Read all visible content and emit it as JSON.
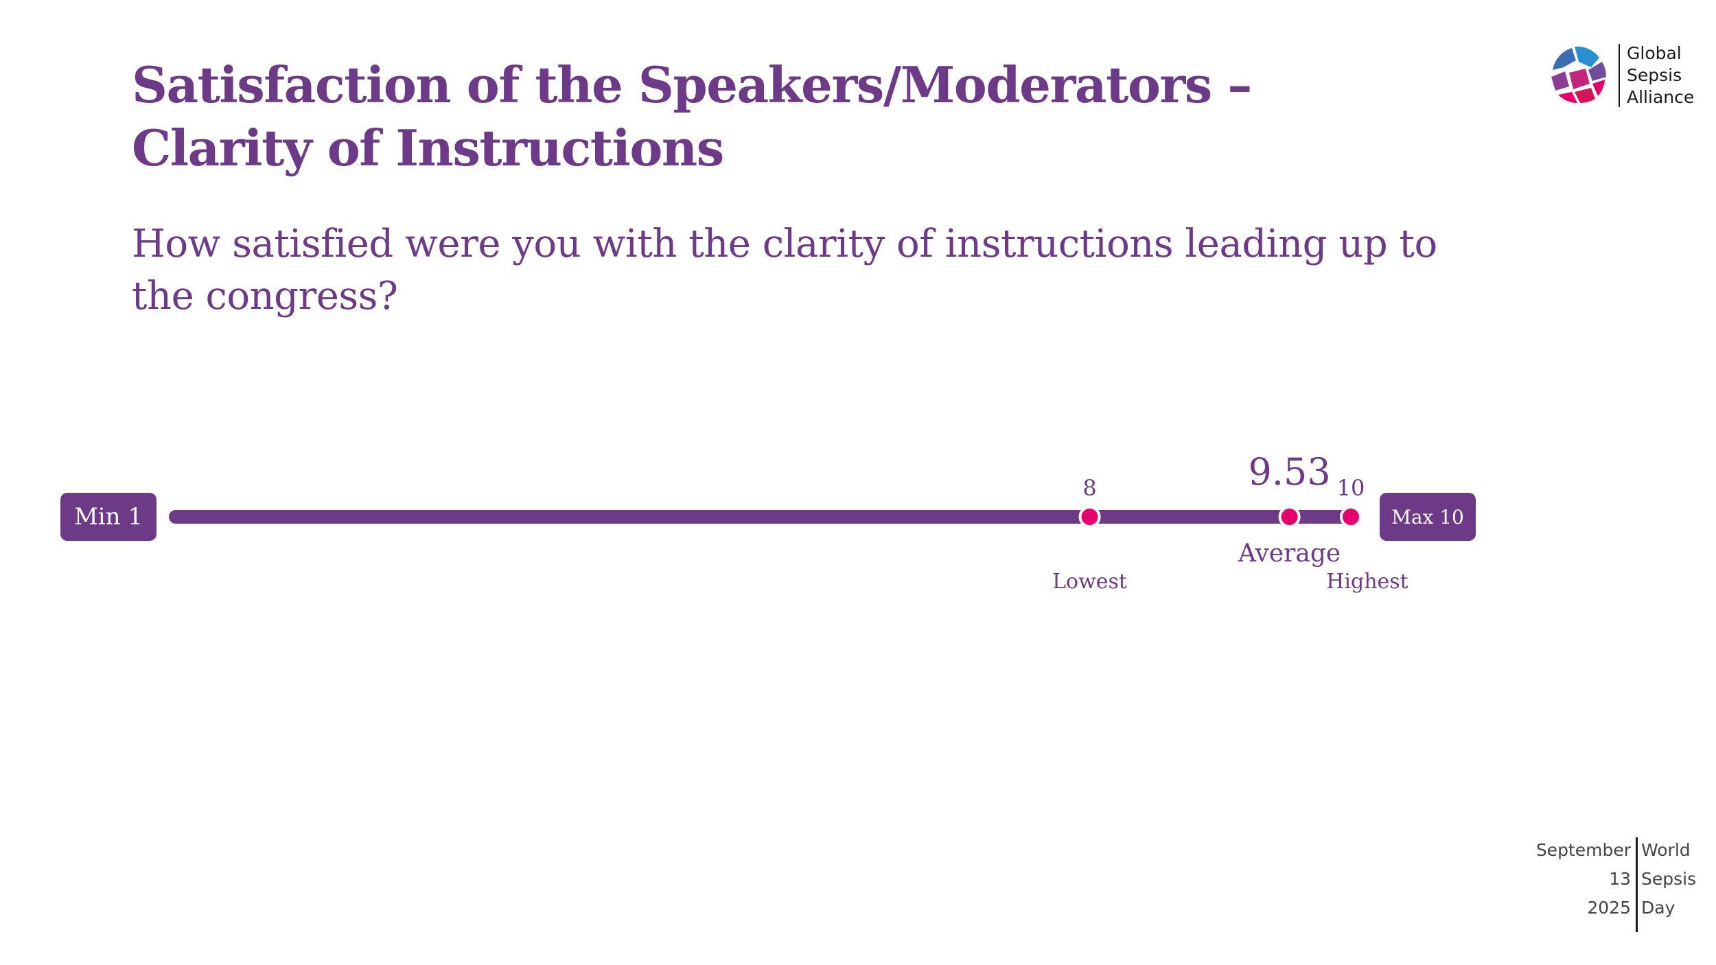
{
  "title": "Satisfaction of the Speakers/Moderators – Clarity of Instructions",
  "question": "How satisfied were you with the clarity of instructions leading up to the congress?",
  "logo": {
    "lines": [
      "Global",
      "Sepsis",
      "Alliance"
    ],
    "icon": "globe-icon"
  },
  "chart_data": {
    "type": "range-scale",
    "min_label": "Min 1",
    "max_label": "Max 10",
    "scale_min": 1,
    "scale_max": 10,
    "lowest": {
      "value": 8,
      "value_label": "8",
      "label": "Lowest"
    },
    "average": {
      "value": 9.53,
      "value_label": "9.53",
      "label": "Average"
    },
    "highest": {
      "value": 10,
      "value_label": "10",
      "label": "Highest"
    }
  },
  "footer": {
    "date_lines": [
      "September",
      "13",
      "2025"
    ],
    "event_lines": [
      "World",
      "Sepsis",
      "Day"
    ]
  },
  "colors": {
    "primary": "#6c3a86",
    "accent": "#e5006d",
    "text_dark": "#1a1a1a"
  }
}
